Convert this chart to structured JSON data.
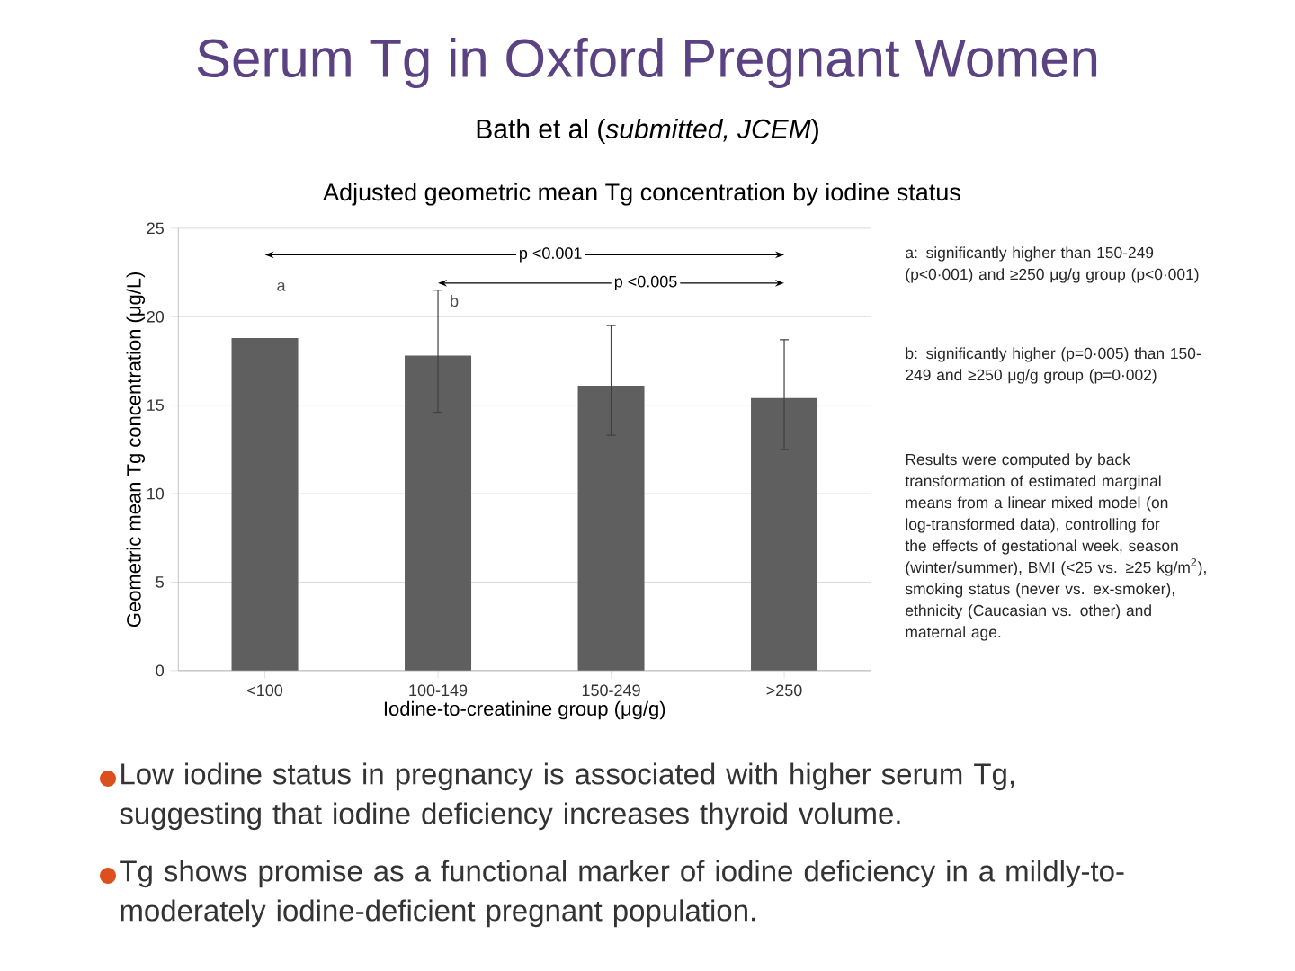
{
  "chart_data": {
    "type": "bar",
    "title": "Serum Tg in Oxford Pregnant Women",
    "subtitle": "Bath et al (*submitted, JCEM*)",
    "xlabel": "Iodine-to-creatinine group (μg/g)",
    "ylabel": "Geometric mean Tg concentration (μg/L)",
    "categories": [
      "<100",
      "100-149",
      "150-249",
      ">250"
    ],
    "values": [
      18.8,
      17.8,
      16.1,
      15.4
    ],
    "color": "#5f5f5f",
    "errors": [
      null,
      [
        14.6,
        21.5
      ],
      [
        13.3,
        19.5
      ],
      [
        12.5,
        18.7
      ]
    ],
    "ylim": [
      0,
      25
    ],
    "yticks": [
      0,
      5,
      10,
      15,
      20,
      25
    ],
    "grid": "y",
    "annotations": [
      "Adjusted geometric mean Tg concentration by iodine status",
      "a",
      "b",
      "p <0.001",
      "p <0.005",
      "a: significantly higher than 150-249 (p<0·001) and ≥250 μg/g group (p<0·001)",
      "b: significantly higher (p=0·005) than 150-249 and ≥250 μg/g group (p=0·002)",
      "Results were computed by back transformation of estimated marginal means from a linear mixed model (on log-transformed data), controlling for the effects of gestational week, season (winter/summer), BMI (<25 vs. ≥25 kg/m$^{2}$), smoking status (never vs. ex-smoker), ethnicity (Caucasian vs. other) and maternal age.",
      "Low iodine status in pregnancy is associated with higher serum Tg, suggesting that iodine deficiency increases thyroid volume.",
      "Tg shows promise as a functional marker of iodine deficiency in a mildly-to-moderately iodine-deficient pregnant population."
    ]
  }
}
